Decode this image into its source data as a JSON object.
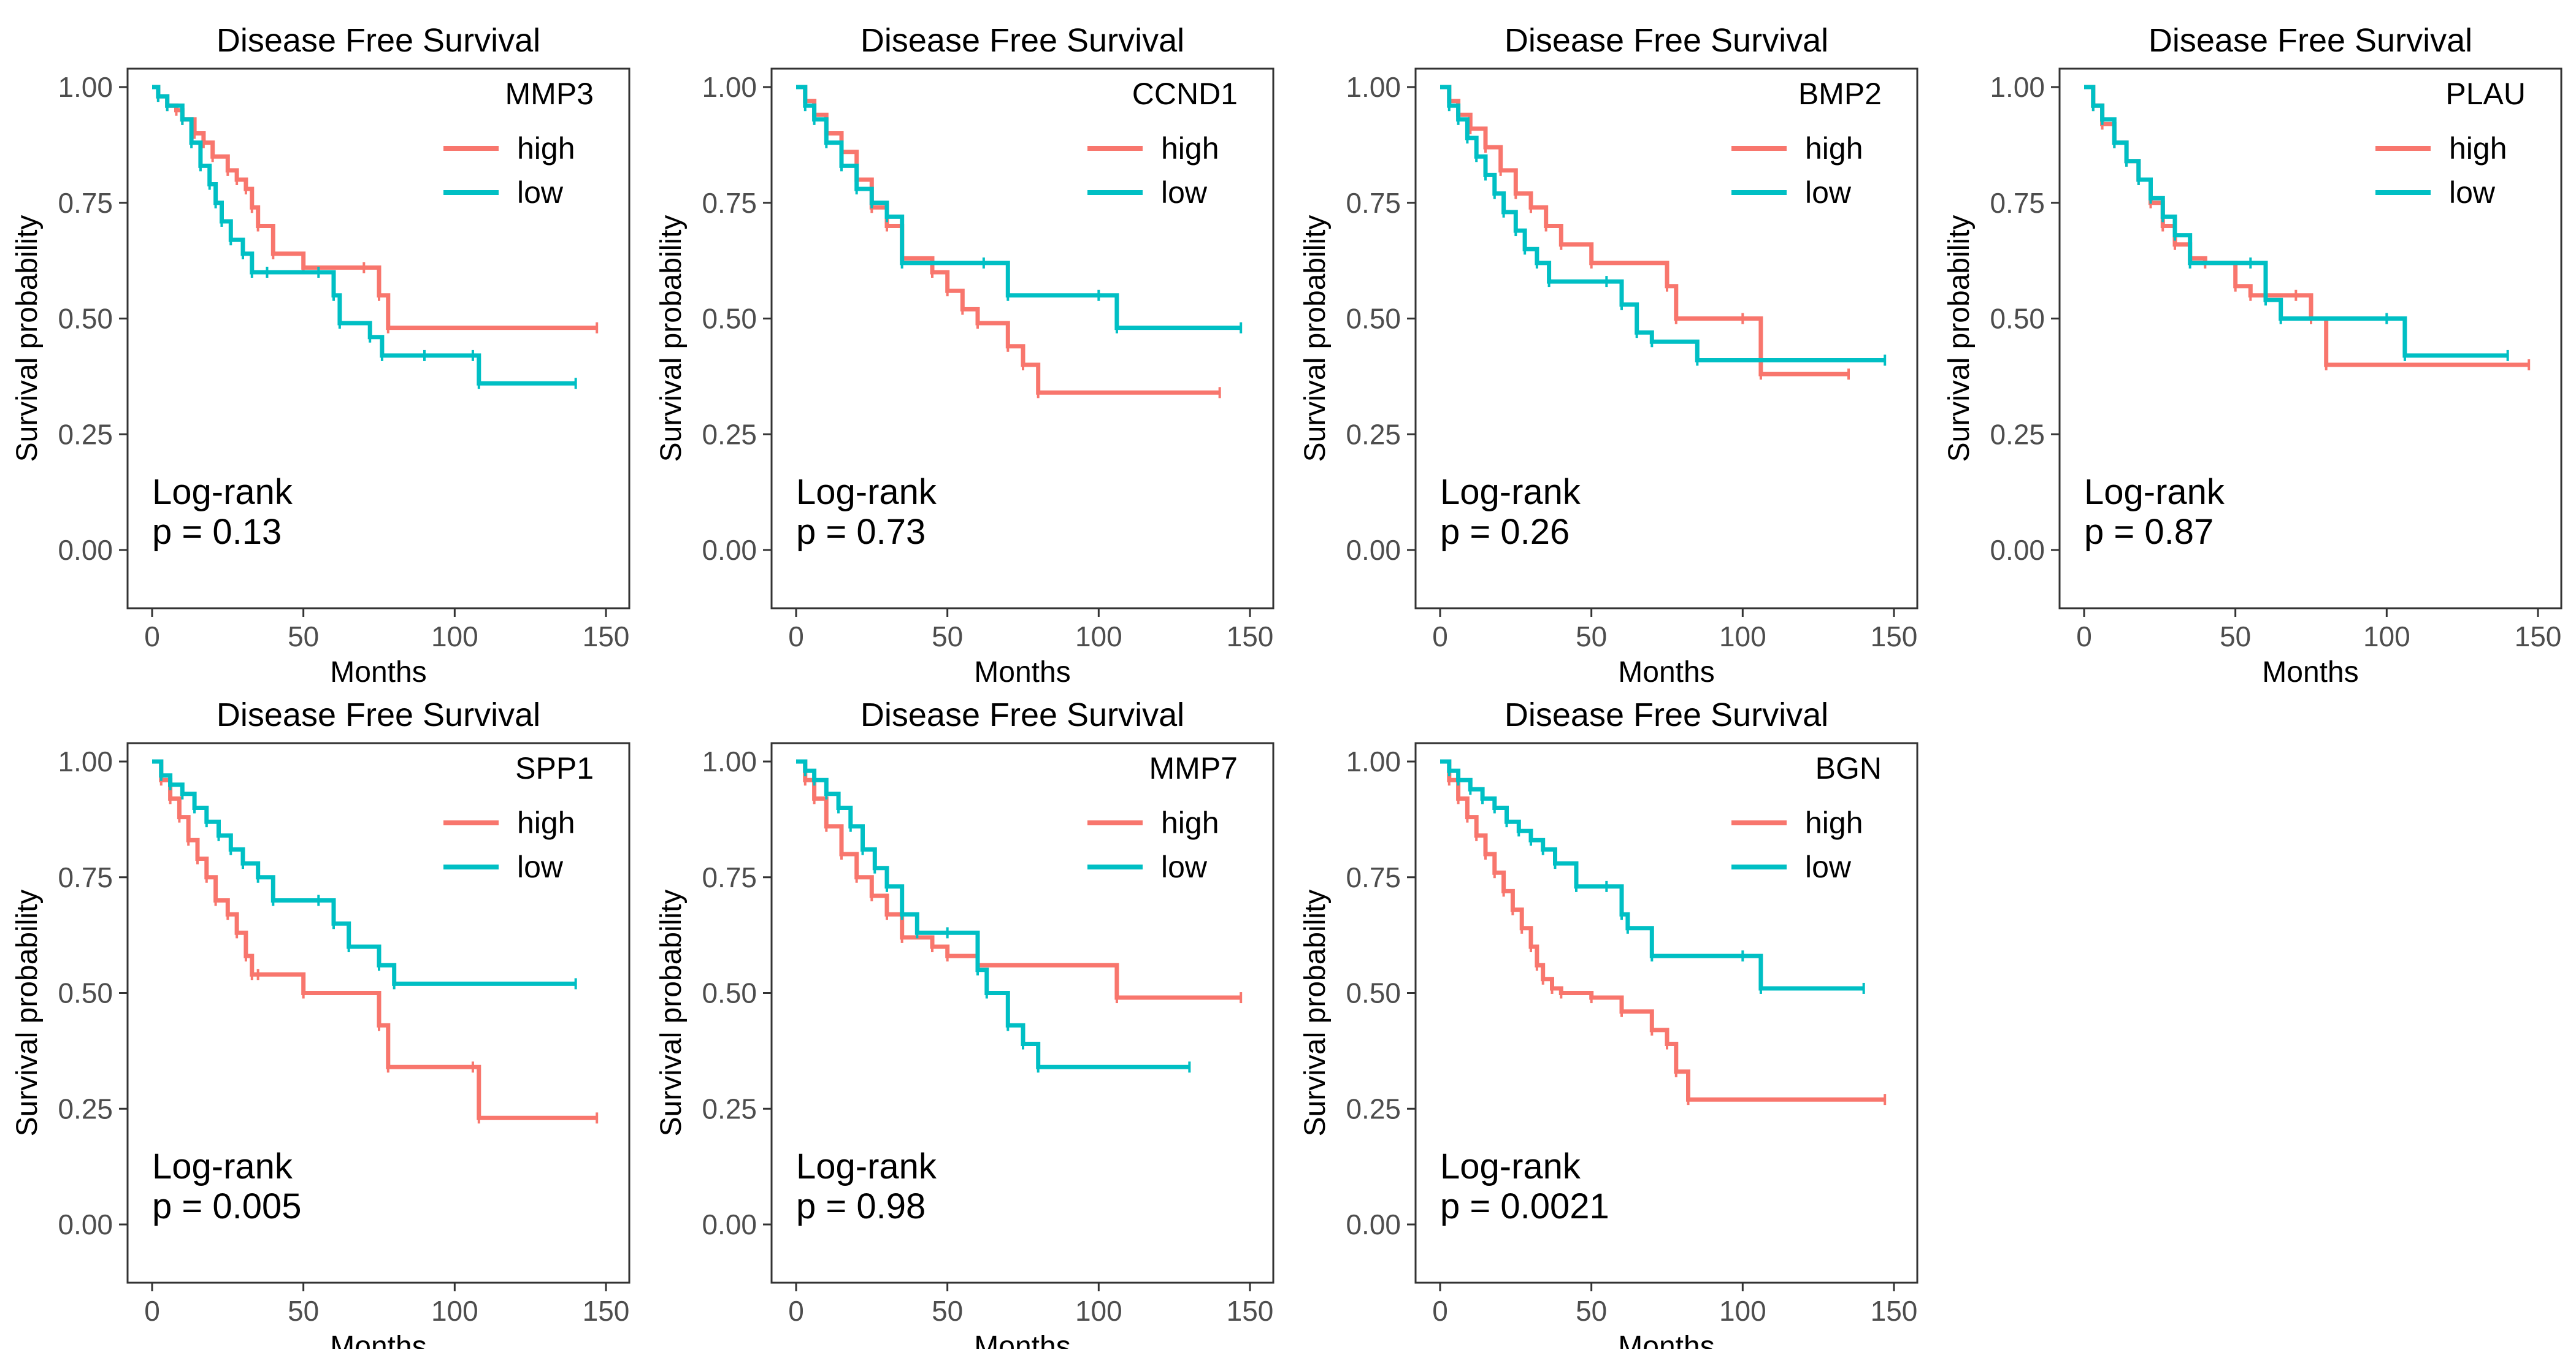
{
  "colors": {
    "high": "#F8766D",
    "low": "#00BFC4"
  },
  "chart_data": [
    {
      "type": "line",
      "title": "Disease Free Survival",
      "legend_title": "MMP3",
      "xlabel": "Months",
      "ylabel": "Survival probability",
      "xlim": [
        0,
        150
      ],
      "ylim": [
        0,
        1
      ],
      "xticks": [
        "0",
        "50",
        "100",
        "150"
      ],
      "yticks": [
        "0.00",
        "0.25",
        "0.50",
        "0.75",
        "1.00"
      ],
      "annotation": [
        "Log-rank",
        "p = 0.13"
      ],
      "grid": false,
      "legend_position": "top-right",
      "series": [
        {
          "name": "high",
          "x": [
            0,
            2,
            5,
            8,
            10,
            14,
            17,
            20,
            25,
            28,
            31,
            33,
            35,
            40,
            50,
            70,
            75,
            78,
            147
          ],
          "y": [
            1.0,
            0.98,
            0.96,
            0.95,
            0.93,
            0.9,
            0.88,
            0.85,
            0.82,
            0.8,
            0.78,
            0.74,
            0.7,
            0.64,
            0.61,
            0.61,
            0.55,
            0.48,
            0.48
          ]
        },
        {
          "name": "low",
          "x": [
            0,
            2,
            5,
            10,
            13,
            16,
            19,
            21,
            23,
            26,
            30,
            33,
            38,
            55,
            60,
            62,
            72,
            76,
            90,
            106,
            108,
            140
          ],
          "y": [
            1.0,
            0.98,
            0.96,
            0.93,
            0.88,
            0.83,
            0.79,
            0.75,
            0.71,
            0.67,
            0.64,
            0.6,
            0.6,
            0.6,
            0.55,
            0.49,
            0.46,
            0.42,
            0.42,
            0.42,
            0.36,
            0.36
          ]
        }
      ]
    },
    {
      "type": "line",
      "title": "Disease Free Survival",
      "legend_title": "CCND1",
      "xlabel": "Months",
      "ylabel": "Survival probability",
      "xlim": [
        0,
        150
      ],
      "ylim": [
        0,
        1
      ],
      "xticks": [
        "0",
        "50",
        "100",
        "150"
      ],
      "yticks": [
        "0.00",
        "0.25",
        "0.50",
        "0.75",
        "1.00"
      ],
      "annotation": [
        "Log-rank",
        "p = 0.73"
      ],
      "grid": false,
      "legend_position": "top-right",
      "series": [
        {
          "name": "high",
          "x": [
            0,
            3,
            6,
            10,
            15,
            20,
            25,
            30,
            35,
            45,
            50,
            55,
            60,
            70,
            75,
            80,
            140
          ],
          "y": [
            1.0,
            0.97,
            0.94,
            0.9,
            0.86,
            0.8,
            0.74,
            0.7,
            0.63,
            0.6,
            0.56,
            0.52,
            0.49,
            0.44,
            0.4,
            0.34,
            0.34
          ]
        },
        {
          "name": "low",
          "x": [
            0,
            3,
            6,
            10,
            15,
            20,
            25,
            30,
            35,
            62,
            70,
            100,
            106,
            147
          ],
          "y": [
            1.0,
            0.96,
            0.93,
            0.88,
            0.83,
            0.78,
            0.75,
            0.72,
            0.62,
            0.62,
            0.55,
            0.55,
            0.48,
            0.48
          ]
        }
      ]
    },
    {
      "type": "line",
      "title": "Disease Free Survival",
      "legend_title": "BMP2",
      "xlabel": "Months",
      "ylabel": "Survival probability",
      "xlim": [
        0,
        150
      ],
      "ylim": [
        0,
        1
      ],
      "xticks": [
        "0",
        "50",
        "100",
        "150"
      ],
      "yticks": [
        "0.00",
        "0.25",
        "0.50",
        "0.75",
        "1.00"
      ],
      "annotation": [
        "Log-rank",
        "p = 0.26"
      ],
      "grid": false,
      "legend_position": "top-right",
      "series": [
        {
          "name": "high",
          "x": [
            0,
            3,
            6,
            10,
            15,
            20,
            25,
            30,
            35,
            40,
            50,
            75,
            78,
            100,
            106,
            135
          ],
          "y": [
            1.0,
            0.97,
            0.94,
            0.91,
            0.87,
            0.82,
            0.77,
            0.74,
            0.7,
            0.66,
            0.62,
            0.57,
            0.5,
            0.5,
            0.38,
            0.38
          ]
        },
        {
          "name": "low",
          "x": [
            0,
            3,
            6,
            9,
            12,
            15,
            18,
            21,
            25,
            28,
            32,
            36,
            55,
            60,
            65,
            70,
            85,
            147
          ],
          "y": [
            1.0,
            0.96,
            0.93,
            0.89,
            0.85,
            0.81,
            0.77,
            0.73,
            0.69,
            0.65,
            0.62,
            0.58,
            0.58,
            0.53,
            0.47,
            0.45,
            0.41,
            0.41
          ]
        }
      ]
    },
    {
      "type": "line",
      "title": "Disease Free Survival",
      "legend_title": "PLAU",
      "xlabel": "Months",
      "ylabel": "Survival probability",
      "xlim": [
        0,
        150
      ],
      "ylim": [
        0,
        1
      ],
      "xticks": [
        "0",
        "50",
        "100",
        "150"
      ],
      "yticks": [
        "0.00",
        "0.25",
        "0.50",
        "0.75",
        "1.00"
      ],
      "annotation": [
        "Log-rank",
        "p = 0.87"
      ],
      "grid": false,
      "legend_position": "top-right",
      "series": [
        {
          "name": "high",
          "x": [
            0,
            3,
            6,
            10,
            14,
            18,
            22,
            26,
            30,
            35,
            40,
            50,
            55,
            70,
            75,
            80,
            147
          ],
          "y": [
            1.0,
            0.96,
            0.92,
            0.88,
            0.84,
            0.8,
            0.75,
            0.7,
            0.66,
            0.63,
            0.62,
            0.57,
            0.55,
            0.55,
            0.5,
            0.4,
            0.4
          ]
        },
        {
          "name": "low",
          "x": [
            0,
            3,
            6,
            10,
            14,
            18,
            22,
            26,
            30,
            35,
            55,
            60,
            65,
            100,
            106,
            140
          ],
          "y": [
            1.0,
            0.96,
            0.93,
            0.88,
            0.84,
            0.8,
            0.76,
            0.72,
            0.68,
            0.62,
            0.62,
            0.54,
            0.5,
            0.5,
            0.42,
            0.42
          ]
        }
      ]
    },
    {
      "type": "line",
      "title": "Disease Free Survival",
      "legend_title": "SPP1",
      "xlabel": "Months",
      "ylabel": "Survival probability",
      "xlim": [
        0,
        150
      ],
      "ylim": [
        0,
        1
      ],
      "xticks": [
        "0",
        "50",
        "100",
        "150"
      ],
      "yticks": [
        "0.00",
        "0.25",
        "0.50",
        "0.75",
        "1.00"
      ],
      "annotation": [
        "Log-rank",
        "p = 0.005"
      ],
      "grid": false,
      "legend_position": "top-right",
      "series": [
        {
          "name": "high",
          "x": [
            0,
            3,
            6,
            9,
            12,
            15,
            18,
            21,
            25,
            28,
            31,
            33,
            35,
            50,
            75,
            78,
            106,
            108,
            147
          ],
          "y": [
            1.0,
            0.96,
            0.92,
            0.88,
            0.83,
            0.79,
            0.75,
            0.7,
            0.67,
            0.63,
            0.58,
            0.54,
            0.54,
            0.5,
            0.43,
            0.34,
            0.34,
            0.23,
            0.23
          ]
        },
        {
          "name": "low",
          "x": [
            0,
            3,
            6,
            10,
            14,
            18,
            22,
            26,
            30,
            35,
            40,
            55,
            60,
            65,
            75,
            80,
            140
          ],
          "y": [
            1.0,
            0.97,
            0.95,
            0.93,
            0.9,
            0.87,
            0.84,
            0.81,
            0.78,
            0.75,
            0.7,
            0.7,
            0.65,
            0.6,
            0.56,
            0.52,
            0.52
          ]
        }
      ]
    },
    {
      "type": "line",
      "title": "Disease Free Survival",
      "legend_title": "MMP7",
      "xlabel": "Months",
      "ylabel": "Survival probability",
      "xlim": [
        0,
        150
      ],
      "ylim": [
        0,
        1
      ],
      "xticks": [
        "0",
        "50",
        "100",
        "150"
      ],
      "yticks": [
        "0.00",
        "0.25",
        "0.50",
        "0.75",
        "1.00"
      ],
      "annotation": [
        "Log-rank",
        "p = 0.98"
      ],
      "grid": false,
      "legend_position": "top-right",
      "series": [
        {
          "name": "high",
          "x": [
            0,
            3,
            6,
            10,
            15,
            20,
            25,
            30,
            35,
            45,
            50,
            60,
            106,
            147
          ],
          "y": [
            1.0,
            0.96,
            0.92,
            0.86,
            0.8,
            0.75,
            0.71,
            0.67,
            0.62,
            0.6,
            0.58,
            0.56,
            0.49,
            0.49
          ]
        },
        {
          "name": "low",
          "x": [
            0,
            3,
            6,
            10,
            14,
            18,
            22,
            26,
            30,
            35,
            40,
            50,
            60,
            63,
            70,
            75,
            80,
            130
          ],
          "y": [
            1.0,
            0.98,
            0.96,
            0.93,
            0.9,
            0.86,
            0.81,
            0.77,
            0.73,
            0.67,
            0.63,
            0.63,
            0.55,
            0.5,
            0.43,
            0.39,
            0.34,
            0.34
          ]
        }
      ]
    },
    {
      "type": "line",
      "title": "Disease Free Survival",
      "legend_title": "BGN",
      "xlabel": "Months",
      "ylabel": "Survival probability",
      "xlim": [
        0,
        150
      ],
      "ylim": [
        0,
        1
      ],
      "xticks": [
        "0",
        "50",
        "100",
        "150"
      ],
      "yticks": [
        "0.00",
        "0.25",
        "0.50",
        "0.75",
        "1.00"
      ],
      "annotation": [
        "Log-rank",
        "p = 0.0021"
      ],
      "grid": false,
      "legend_position": "top-right",
      "series": [
        {
          "name": "high",
          "x": [
            0,
            3,
            6,
            9,
            12,
            15,
            18,
            21,
            24,
            27,
            30,
            32,
            34,
            37,
            40,
            50,
            60,
            70,
            75,
            78,
            82,
            147
          ],
          "y": [
            1.0,
            0.96,
            0.92,
            0.88,
            0.84,
            0.8,
            0.76,
            0.72,
            0.68,
            0.64,
            0.6,
            0.56,
            0.53,
            0.51,
            0.5,
            0.49,
            0.46,
            0.42,
            0.39,
            0.33,
            0.27,
            0.27
          ]
        },
        {
          "name": "low",
          "x": [
            0,
            3,
            6,
            10,
            14,
            18,
            22,
            26,
            30,
            34,
            38,
            45,
            55,
            60,
            62,
            70,
            100,
            106,
            140
          ],
          "y": [
            1.0,
            0.98,
            0.96,
            0.94,
            0.92,
            0.9,
            0.87,
            0.85,
            0.83,
            0.81,
            0.78,
            0.73,
            0.73,
            0.67,
            0.64,
            0.58,
            0.58,
            0.51,
            0.51
          ]
        }
      ]
    }
  ]
}
